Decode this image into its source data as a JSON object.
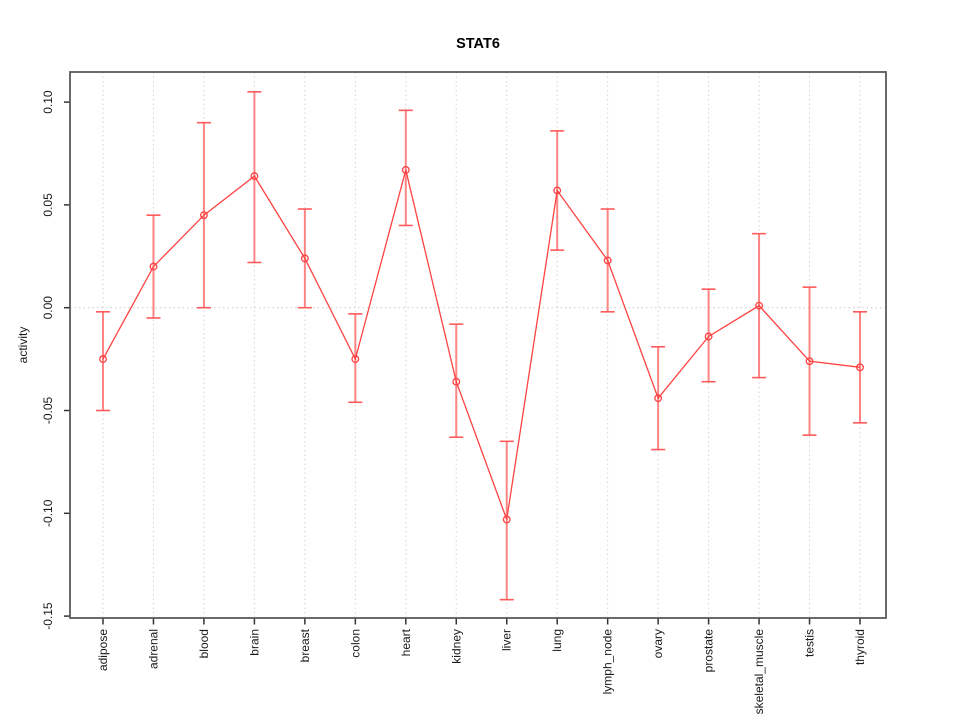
{
  "chart_data": {
    "type": "line",
    "title": "STAT6",
    "xlabel": "",
    "ylabel": "activity",
    "legend": "none",
    "grid": "vertical dotted gridlines at each category; dotted horizontal reference line at y=0",
    "ylim": [
      -0.151,
      0.115
    ],
    "yticks": {
      "values": [
        0.1,
        0.05,
        0.0,
        -0.05,
        -0.1,
        -0.15
      ],
      "labels": [
        "0.10",
        "0.05",
        "0.00",
        "-0.05",
        "-0.10",
        "-0.15"
      ]
    },
    "categories": [
      "adipose",
      "adrenal",
      "blood",
      "brain",
      "breast",
      "colon",
      "heart",
      "kidney",
      "liver",
      "lung",
      "lymph_node",
      "ovary",
      "prostate",
      "skeletal_muscle",
      "testis",
      "thyroid"
    ],
    "series": [
      {
        "name": "activity",
        "marker": "open-circle",
        "values": [
          -0.025,
          0.02,
          0.045,
          0.064,
          0.024,
          -0.025,
          0.067,
          -0.036,
          -0.103,
          0.057,
          0.023,
          -0.044,
          -0.014,
          0.001,
          -0.026,
          -0.029
        ],
        "lower": [
          -0.05,
          -0.005,
          0.0,
          0.022,
          0.0,
          -0.046,
          0.04,
          -0.063,
          -0.142,
          0.028,
          -0.002,
          -0.069,
          -0.036,
          -0.034,
          -0.062,
          -0.056
        ],
        "upper": [
          -0.002,
          0.045,
          0.09,
          0.105,
          0.048,
          -0.003,
          0.096,
          -0.008,
          -0.065,
          0.086,
          0.048,
          -0.019,
          0.009,
          0.036,
          0.01,
          -0.002
        ]
      }
    ],
    "colors": {
      "series_line": "#ff4242",
      "marker_stroke": "#ff4242",
      "error_bar_stem": "#ff8585",
      "error_bar_cap": "#ff5a5a",
      "gridline": "#d4d4d4",
      "zero_line": "#cccccc",
      "plot_border": "#5a5a5a",
      "tick": "#333333",
      "background": "#ffffff"
    }
  }
}
